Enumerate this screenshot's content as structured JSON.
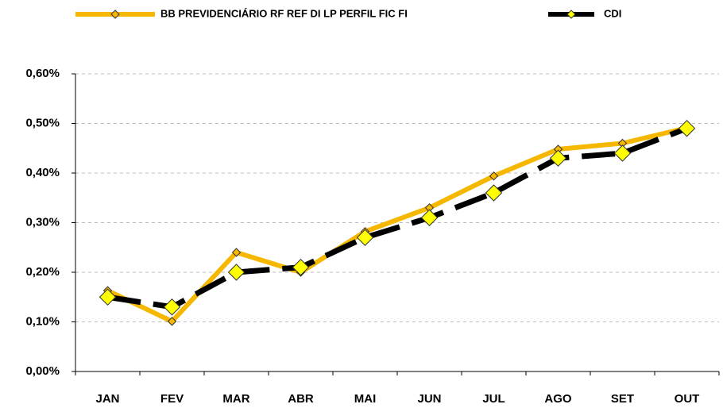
{
  "chart_data": {
    "type": "line",
    "categories": [
      "JAN",
      "FEV",
      "MAR",
      "ABR",
      "MAI",
      "JUN",
      "JUL",
      "AGO",
      "SET",
      "OUT"
    ],
    "series": [
      {
        "name": "BB PREVIDENCIÁRIO RF REF DI LP PERFIL FIC FI",
        "color": "#f5b700",
        "values": [
          0.163,
          0.101,
          0.24,
          0.2,
          0.282,
          0.33,
          0.394,
          0.448,
          0.46,
          0.491
        ]
      },
      {
        "name": "CDI",
        "color": "#000000",
        "values": [
          0.15,
          0.13,
          0.2,
          0.21,
          0.27,
          0.31,
          0.36,
          0.43,
          0.44,
          0.49
        ]
      }
    ],
    "ylim": [
      0,
      0.6
    ],
    "yticks": [
      {
        "value": 0,
        "label": "0,00%"
      },
      {
        "value": 0.1,
        "label": "0,10%"
      },
      {
        "value": 0.2,
        "label": "0,20%"
      },
      {
        "value": 0.3,
        "label": "0,30%"
      },
      {
        "value": 0.4,
        "label": "0,40%"
      },
      {
        "value": 0.5,
        "label": "0,50%"
      },
      {
        "value": 0.6,
        "label": "0,60%"
      }
    ],
    "grid": true
  }
}
